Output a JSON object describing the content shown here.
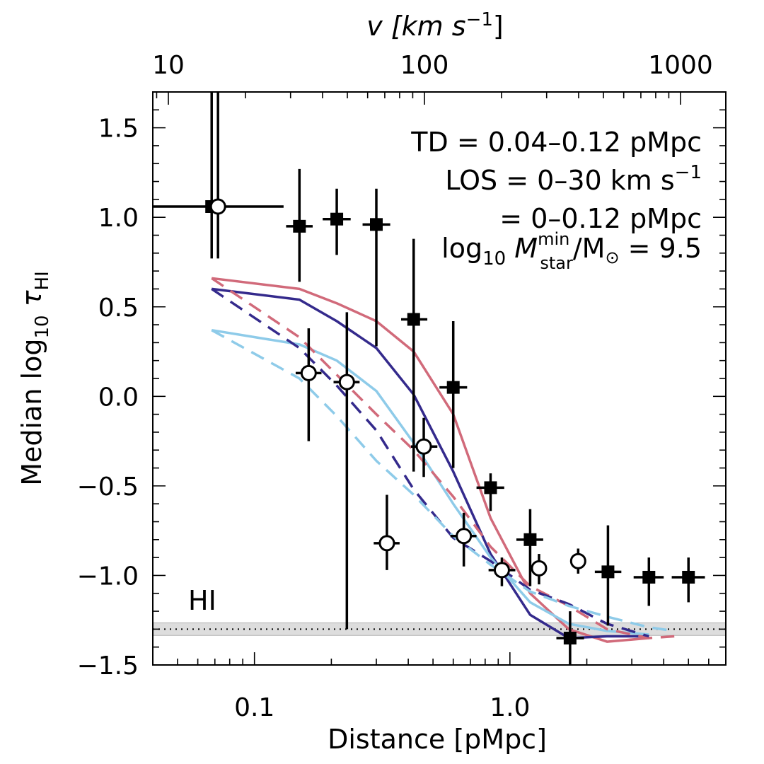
{
  "chart_data": {
    "type": "scatter",
    "xlabel": "Distance [pMpc]",
    "ylabel_main": "Median log",
    "ylabel_sub": "10",
    "ylabel_tau": "τ",
    "ylabel_tau_sub": "HI",
    "top_xlabel": "v [km s",
    "top_xlabel_sup": "−1",
    "top_xlabel_end": "]",
    "x_scale": "log",
    "xlim": [
      0.04,
      7.0
    ],
    "ylim": [
      -1.5,
      1.7
    ],
    "top_axis_ticks": [
      {
        "label": "10",
        "v": 10
      },
      {
        "label": "100",
        "v": 100
      },
      {
        "label": "1000",
        "v": 1000
      }
    ],
    "x_tick_labels": [
      {
        "label": "0.1",
        "v": 0.1
      },
      {
        "label": "1.0",
        "v": 1.0
      }
    ],
    "y_tick_labels": [
      {
        "label": "1.5",
        "v": 1.5
      },
      {
        "label": "1.0",
        "v": 1.0
      },
      {
        "label": "0.5",
        "v": 0.5
      },
      {
        "label": "0.0",
        "v": 0.0
      },
      {
        "label": "−0.5",
        "v": -0.5
      },
      {
        "label": "−1.0",
        "v": -1.0
      },
      {
        "label": "−1.5",
        "v": -1.5
      }
    ],
    "annotation": {
      "line1": "TD = 0.04–0.12 pMpc",
      "line2": "LOS = 0–30 km s",
      "line2_sup": "−1",
      "line3": "= 0–0.12 pMpc",
      "line4_a": "log",
      "line4_b": "10",
      "line4_c": "M",
      "line4_sup": "min",
      "line4_sub": "star",
      "line4_d": "/M",
      "line4_e": "⊙",
      "line4_f": " = 9.5"
    },
    "hi_label": "HI",
    "baseline": {
      "y": -1.3,
      "band": [
        -1.335,
        -1.265
      ]
    },
    "series": [
      {
        "marker": "square-filled",
        "color": "#000000",
        "points": [
          {
            "x": 0.068,
            "y": 1.06,
            "xlo": 0.04,
            "xhi": 0.13,
            "ylo": 0.77,
            "yhi": 1.7
          },
          {
            "x": 0.15,
            "y": 0.95,
            "xlo": 0.133,
            "xhi": 0.169,
            "ylo": 0.64,
            "yhi": 1.27
          },
          {
            "x": 0.21,
            "y": 0.99,
            "xlo": 0.185,
            "xhi": 0.238,
            "ylo": 0.79,
            "yhi": 1.16
          },
          {
            "x": 0.3,
            "y": 0.96,
            "xlo": 0.265,
            "xhi": 0.34,
            "ylo": 0.28,
            "yhi": 1.16
          },
          {
            "x": 0.42,
            "y": 0.43,
            "xlo": 0.375,
            "xhi": 0.475,
            "ylo": -0.42,
            "yhi": 0.88
          },
          {
            "x": 0.6,
            "y": 0.05,
            "xlo": 0.53,
            "xhi": 0.68,
            "ylo": -0.4,
            "yhi": 0.42
          },
          {
            "x": 0.84,
            "y": -0.51,
            "xlo": 0.74,
            "xhi": 0.95,
            "ylo": -0.64,
            "yhi": -0.43
          },
          {
            "x": 1.2,
            "y": -0.8,
            "xlo": 1.06,
            "xhi": 1.35,
            "ylo": -1.06,
            "yhi": -0.63
          },
          {
            "x": 1.72,
            "y": -1.35,
            "xlo": 1.52,
            "xhi": 1.95,
            "ylo": -1.55,
            "yhi": -1.2
          },
          {
            "x": 2.42,
            "y": -0.98,
            "xlo": 2.15,
            "xhi": 2.73,
            "ylo": -1.28,
            "yhi": -0.72
          },
          {
            "x": 3.5,
            "y": -1.01,
            "xlo": 3.05,
            "xhi": 4.0,
            "ylo": -1.17,
            "yhi": -0.9
          },
          {
            "x": 5.0,
            "y": -1.01,
            "xlo": 4.3,
            "xhi": 5.8,
            "ylo": -1.15,
            "yhi": -0.9
          }
        ]
      },
      {
        "marker": "circle-open",
        "color": "#000000",
        "points": [
          {
            "x": 0.072,
            "y": 1.06,
            "xlo": 0.072,
            "xhi": 0.072,
            "ylo": 0.77,
            "yhi": 1.7
          },
          {
            "x": 0.163,
            "y": 0.13,
            "xlo": 0.145,
            "xhi": 0.183,
            "ylo": -0.25,
            "yhi": 0.38
          },
          {
            "x": 0.23,
            "y": 0.08,
            "xlo": 0.204,
            "xhi": 0.258,
            "ylo": -1.3,
            "yhi": 0.47
          },
          {
            "x": 0.33,
            "y": -0.82,
            "xlo": 0.293,
            "xhi": 0.37,
            "ylo": -0.97,
            "yhi": -0.55
          },
          {
            "x": 0.46,
            "y": -0.28,
            "xlo": 0.41,
            "xhi": 0.52,
            "ylo": -0.45,
            "yhi": -0.12
          },
          {
            "x": 0.66,
            "y": -0.78,
            "xlo": 0.585,
            "xhi": 0.74,
            "ylo": -0.95,
            "yhi": -0.65
          },
          {
            "x": 0.93,
            "y": -0.97,
            "xlo": 0.825,
            "xhi": 1.05,
            "ylo": -1.06,
            "yhi": -0.9
          },
          {
            "x": 1.3,
            "y": -0.96,
            "xlo": 1.27,
            "xhi": 1.33,
            "ylo": -1.05,
            "yhi": -0.88
          },
          {
            "x": 1.85,
            "y": -0.92,
            "xlo": 1.85,
            "xhi": 1.85,
            "ylo": -0.99,
            "yhi": -0.85
          }
        ]
      }
    ],
    "lines": [
      {
        "color": "#d16a7a",
        "dash": false,
        "x": [
          0.068,
          0.15,
          0.21,
          0.3,
          0.42,
          0.6,
          0.84,
          1.2,
          1.7,
          2.4,
          3.5
        ],
        "y": [
          0.66,
          0.6,
          0.52,
          0.42,
          0.25,
          -0.1,
          -0.68,
          -1.1,
          -1.3,
          -1.37,
          -1.35
        ]
      },
      {
        "color": "#342a8c",
        "dash": false,
        "x": [
          0.068,
          0.15,
          0.21,
          0.3,
          0.42,
          0.6,
          0.84,
          1.2,
          1.7,
          2.4,
          3.5
        ],
        "y": [
          0.6,
          0.54,
          0.42,
          0.27,
          0.01,
          -0.42,
          -0.88,
          -1.22,
          -1.35,
          -1.34,
          -1.34
        ]
      },
      {
        "color": "#8ecbe9",
        "dash": false,
        "x": [
          0.068,
          0.15,
          0.21,
          0.3,
          0.42,
          0.6,
          0.84,
          1.2,
          1.7,
          2.4,
          3.5
        ],
        "y": [
          0.37,
          0.29,
          0.2,
          0.03,
          -0.26,
          -0.6,
          -0.9,
          -1.15,
          -1.27,
          -1.31,
          -1.33
        ]
      },
      {
        "color": "#d16a7a",
        "dash": true,
        "x": [
          0.068,
          0.15,
          0.21,
          0.3,
          0.42,
          0.6,
          0.84,
          1.2,
          1.7,
          2.4,
          3.5,
          4.4
        ],
        "y": [
          0.66,
          0.33,
          0.12,
          -0.1,
          -0.3,
          -0.56,
          -0.84,
          -1.06,
          -1.17,
          -1.3,
          -1.35,
          -1.34
        ]
      },
      {
        "color": "#342a8c",
        "dash": true,
        "x": [
          0.068,
          0.15,
          0.21,
          0.3,
          0.42,
          0.6,
          0.84,
          1.2,
          1.7,
          2.4,
          3.5
        ],
        "y": [
          0.6,
          0.27,
          0.06,
          -0.19,
          -0.52,
          -0.79,
          -0.92,
          -1.08,
          -1.16,
          -1.27,
          -1.34
        ]
      },
      {
        "color": "#8ecbe9",
        "dash": true,
        "x": [
          0.068,
          0.15,
          0.21,
          0.3,
          0.42,
          0.6,
          0.84,
          1.2,
          1.7,
          2.4,
          3.5,
          4.4
        ],
        "y": [
          0.37,
          0.1,
          -0.11,
          -0.36,
          -0.55,
          -0.78,
          -0.94,
          -1.09,
          -1.17,
          -1.23,
          -1.29,
          -1.31
        ]
      }
    ]
  }
}
